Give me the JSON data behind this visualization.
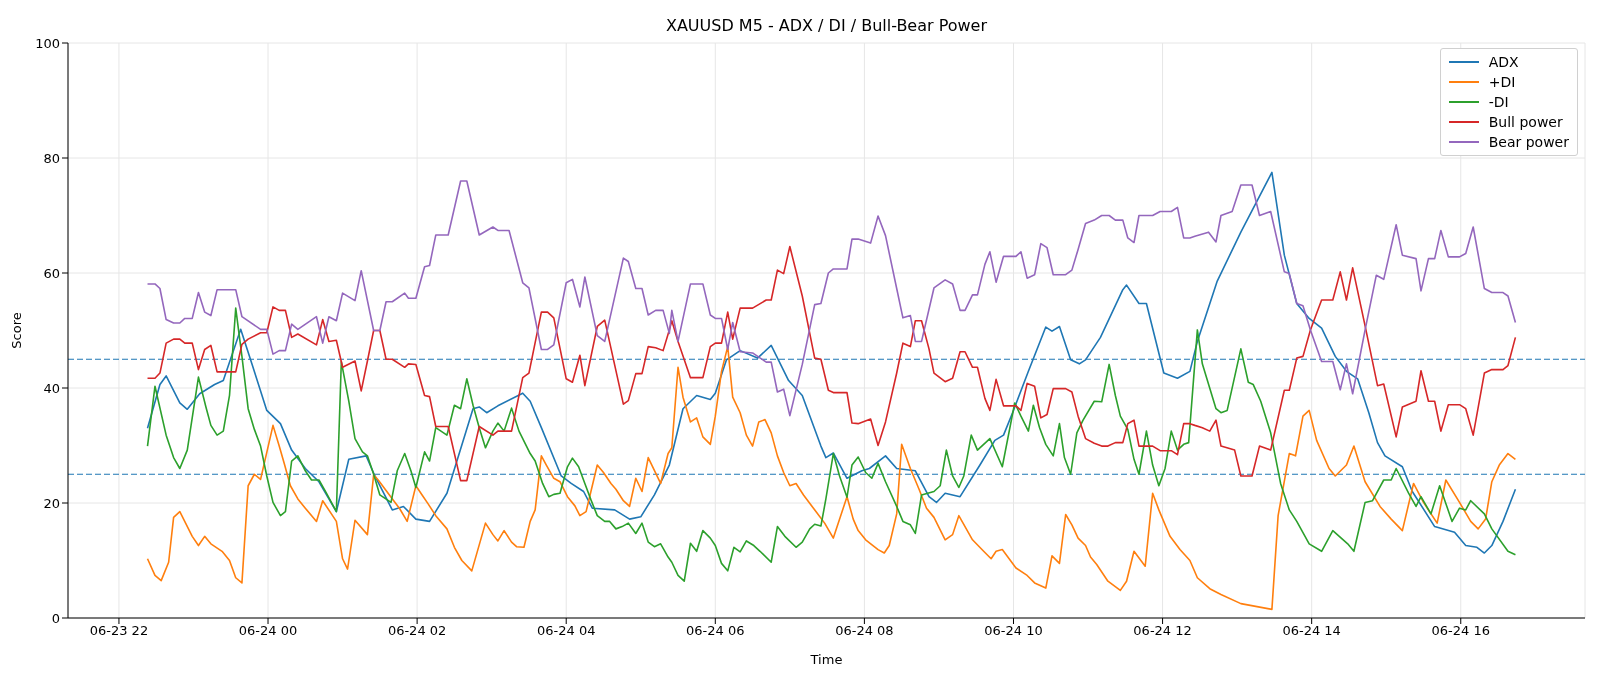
{
  "chart_data": {
    "type": "line",
    "title": "XAUUSD M5 - ADX / DI / Bull-Bear Power",
    "xlabel": "Time",
    "ylabel": "Score",
    "xlim": [
      "--06-23T21:19",
      "--06-24T17:40"
    ],
    "xticks": [
      {
        "value": "--06-23T22:00",
        "label": "06-23 22"
      },
      {
        "value": "--06-24T00:00",
        "label": "06-24 00"
      },
      {
        "value": "--06-24T02:00",
        "label": "06-24 02"
      },
      {
        "value": "--06-24T04:00",
        "label": "06-24 04"
      },
      {
        "value": "--06-24T06:00",
        "label": "06-24 06"
      },
      {
        "value": "--06-24T08:00",
        "label": "06-24 08"
      },
      {
        "value": "--06-24T10:00",
        "label": "06-24 10"
      },
      {
        "value": "--06-24T12:00",
        "label": "06-24 12"
      },
      {
        "value": "--06-24T14:00",
        "label": "06-24 14"
      },
      {
        "value": "--06-24T16:00",
        "label": "06-24 16"
      }
    ],
    "ylim": [
      0,
      100
    ],
    "yticks": [
      0,
      20,
      40,
      60,
      80,
      100
    ],
    "grid": true,
    "legend": "top right",
    "line_style": "solid",
    "ref_lines": [
      {
        "axis": "y",
        "value": 45,
        "color": "#1f77b4",
        "line_style": "dashed"
      },
      {
        "axis": "y",
        "value": 25,
        "color": "#1f77b4",
        "line_style": "dashed"
      }
    ],
    "series": [
      {
        "name": "ADX",
        "color": "#1f77b4",
        "x": [
          "--06-23T22:23",
          "--06-23T22:33",
          "--06-23T22:38",
          "--06-23T22:49",
          "--06-23T22:55",
          "--06-23T23:05",
          "--06-23T23:17",
          "--06-23T23:24",
          "--06-23T23:38",
          "--06-23T23:47",
          "--06-23T23:59",
          "--06-24T00:10",
          "--06-24T00:19",
          "--06-24T00:30",
          "--06-24T00:41",
          "--06-24T00:55",
          "--06-24T01:05",
          "--06-24T01:19",
          "--06-24T01:26",
          "--06-24T01:40",
          "--06-24T01:49",
          "--06-24T01:59",
          "--06-24T02:10",
          "--06-24T02:24",
          "--06-24T02:45",
          "--06-24T02:50",
          "--06-24T02:56",
          "--06-24T03:05",
          "--06-24T03:25",
          "--06-24T03:31",
          "--06-24T03:40",
          "--06-24T03:56",
          "--06-24T04:04",
          "--06-24T04:14",
          "--06-24T04:21",
          "--06-24T04:39",
          "--06-24T04:51",
          "--06-24T05:00",
          "--06-24T05:11",
          "--06-24T05:23",
          "--06-24T05:34",
          "--06-24T05:45",
          "--06-24T05:56",
          "--06-24T06:00",
          "--06-24T06:09",
          "--06-24T06:20",
          "--06-24T06:34",
          "--06-24T06:45",
          "--06-24T06:59",
          "--06-24T07:10",
          "--06-24T07:25",
          "--06-24T07:29",
          "--06-24T07:35",
          "--06-24T07:46",
          "--06-24T07:58",
          "--06-24T08:04",
          "--06-24T08:17",
          "--06-24T08:26",
          "--06-24T08:41",
          "--06-24T08:52",
          "--06-24T08:58",
          "--06-24T09:05",
          "--06-24T09:17",
          "--06-24T09:33",
          "--06-24T09:45",
          "--06-24T09:52",
          "--06-24T10:00",
          "--06-24T10:12",
          "--06-24T10:26",
          "--06-24T10:31",
          "--06-24T10:37",
          "--06-24T10:46",
          "--06-24T10:53",
          "--06-24T10:58",
          "--06-24T11:10",
          "--06-24T11:28",
          "--06-24T11:31",
          "--06-24T11:41",
          "--06-24T11:47",
          "--06-24T12:01",
          "--06-24T12:12",
          "--06-24T12:22",
          "--06-24T12:28",
          "--06-24T12:44",
          "--06-24T13:03",
          "--06-24T13:28",
          "--06-24T13:38",
          "--06-24T13:48",
          "--06-24T13:58",
          "--06-24T14:08",
          "--06-24T14:19",
          "--06-24T14:28",
          "--06-24T14:37",
          "--06-24T14:46",
          "--06-24T14:53",
          "--06-24T14:59",
          "--06-24T15:13",
          "--06-24T15:21",
          "--06-24T15:39",
          "--06-24T15:55",
          "--06-24T16:04",
          "--06-24T16:13",
          "--06-24T16:19",
          "--06-24T16:25",
          "--06-24T16:34",
          "--06-24T16:44"
        ],
        "values": [
          33,
          40.6,
          42.1,
          37.4,
          36.3,
          39,
          40.6,
          41.3,
          50.2,
          44.2,
          36.1,
          33.8,
          29.2,
          26,
          23.7,
          18.5,
          27.6,
          28.2,
          24.7,
          18.8,
          19.4,
          17.2,
          16.8,
          21.7,
          36.4,
          36.7,
          35.7,
          36.9,
          39.1,
          37.7,
          33.1,
          24.7,
          23.4,
          22,
          19.1,
          18.8,
          17.2,
          17.6,
          21.4,
          26.6,
          36.4,
          38.7,
          38,
          39.1,
          44.9,
          46.5,
          45.2,
          47.4,
          41.3,
          38.7,
          29.9,
          27.9,
          28.7,
          24.3,
          25.6,
          26,
          28.2,
          26,
          25.6,
          21.1,
          20.1,
          21.7,
          21.1,
          26.6,
          30.9,
          31.8,
          36.1,
          42.9,
          50.6,
          49.9,
          50.7,
          44.9,
          44.2,
          44.9,
          48.8,
          57.1,
          57.9,
          54.7,
          54.7,
          42.6,
          41.7,
          42.9,
          48.1,
          58.6,
          67.1,
          77.5,
          63.1,
          54.7,
          52.1,
          50.4,
          45.5,
          42.9,
          41.6,
          35.7,
          30.5,
          28.2,
          26.3,
          22,
          15.9,
          14.9,
          12.6,
          12.3,
          11.3,
          12.6,
          16.8,
          22.4
        ]
      },
      {
        "name": "+DI",
        "color": "#ff7f0e",
        "x": [
          "--06-23T22:23",
          "--06-23T22:29",
          "--06-23T22:34",
          "--06-23T22:40",
          "--06-23T22:44",
          "--06-23T22:49",
          "--06-23T22:59",
          "--06-23T23:04",
          "--06-23T23:09",
          "--06-23T23:14",
          "--06-23T23:23",
          "--06-23T23:29",
          "--06-23T23:34",
          "--06-23T23:39",
          "--06-23T23:44",
          "--06-23T23:49",
          "--06-23T23:54",
          "--06-24T00:04",
          "--06-24T00:09",
          "--06-24T00:13",
          "--06-24T00:18",
          "--06-24T00:24",
          "--06-24T00:30",
          "--06-24T00:39",
          "--06-24T00:44",
          "--06-24T00:55",
          "--06-24T01:00",
          "--06-24T01:04",
          "--06-24T01:10",
          "--06-24T01:20",
          "--06-24T01:25",
          "--06-24T01:29",
          "--06-24T01:38",
          "--06-24T01:46",
          "--06-24T01:52",
          "--06-24T01:59",
          "--06-24T02:04",
          "--06-24T02:09",
          "--06-24T02:15",
          "--06-24T02:24",
          "--06-24T02:30",
          "--06-24T02:36",
          "--06-24T02:44",
          "--06-24T02:55",
          "--06-24T03:01",
          "--06-24T03:05",
          "--06-24T03:10",
          "--06-24T03:16",
          "--06-24T03:20",
          "--06-24T03:26",
          "--06-24T03:31",
          "--06-24T03:35",
          "--06-24T03:40",
          "--06-24T03:44",
          "--06-24T03:50",
          "--06-24T03:55",
          "--06-24T04:01",
          "--06-24T04:07",
          "--06-24T04:11",
          "--06-24T04:16",
          "--06-24T04:25",
          "--06-24T04:30",
          "--06-24T04:36",
          "--06-24T04:40",
          "--06-24T04:46",
          "--06-24T04:51",
          "--06-24T04:56",
          "--06-24T05:01",
          "--06-24T05:06",
          "--06-24T05:16",
          "--06-24T05:22",
          "--06-24T05:25",
          "--06-24T05:30",
          "--06-24T05:34",
          "--06-24T05:40",
          "--06-24T05:45",
          "--06-24T05:50",
          "--06-24T05:56",
          "--06-24T06:00",
          "--06-24T06:05",
          "--06-24T06:10",
          "--06-24T06:14",
          "--06-24T06:20",
          "--06-24T06:25",
          "--06-24T06:30",
          "--06-24T06:35",
          "--06-24T06:40",
          "--06-24T06:45",
          "--06-24T06:50",
          "--06-24T06:55",
          "--06-24T07:00",
          "--06-24T07:05",
          "--06-24T07:11",
          "--06-24T07:19",
          "--06-24T07:28",
          "--06-24T07:35",
          "--06-24T07:46",
          "--06-24T07:51",
          "--06-24T07:55",
          "--06-24T08:01",
          "--06-24T08:11",
          "--06-24T08:16",
          "--06-24T08:20",
          "--06-24T08:26",
          "--06-24T08:30",
          "--06-24T08:37",
          "--06-24T08:44",
          "--06-24T08:50",
          "--06-24T08:56",
          "--06-24T09:05",
          "--06-24T09:11",
          "--06-24T09:16",
          "--06-24T09:27",
          "--06-24T09:36",
          "--06-24T09:42",
          "--06-24T09:46",
          "--06-24T09:51",
          "--06-24T10:02",
          "--06-24T10:11",
          "--06-24T10:17",
          "--06-24T10:26",
          "--06-24T10:31",
          "--06-24T10:37",
          "--06-24T10:42",
          "--06-24T10:47",
          "--06-24T10:52",
          "--06-24T10:58",
          "--06-24T11:02",
          "--06-24T11:07",
          "--06-24T11:16",
          "--06-24T11:26",
          "--06-24T11:31",
          "--06-24T11:37",
          "--06-24T11:46",
          "--06-24T11:52",
          "--06-24T11:57",
          "--06-24T12:06",
          "--06-24T12:14",
          "--06-24T12:22",
          "--06-24T12:28",
          "--06-24T12:38",
          "--06-24T12:47",
          "--06-24T13:03",
          "--06-24T13:28",
          "--06-24T13:33",
          "--06-24T13:42",
          "--06-24T13:47",
          "--06-24T13:53",
          "--06-24T13:58",
          "--06-24T14:04",
          "--06-24T14:14",
          "--06-24T14:19",
          "--06-24T14:28",
          "--06-24T14:34",
          "--06-24T14:43",
          "--06-24T14:55",
          "--06-24T15:04",
          "--06-24T15:13",
          "--06-24T15:22",
          "--06-24T15:30",
          "--06-24T15:41",
          "--06-24T15:48",
          "--06-24T15:59",
          "--06-24T16:08",
          "--06-24T16:14",
          "--06-24T16:20",
          "--06-24T16:25",
          "--06-24T16:31",
          "--06-24T16:38",
          "--06-24T16:44"
        ],
        "values": [
          10.3,
          7.4,
          6.5,
          9.7,
          17.5,
          18.5,
          14.2,
          12.6,
          14.2,
          12.9,
          11.6,
          10,
          7,
          6.1,
          23,
          25,
          24.1,
          33.5,
          29.9,
          26.9,
          23,
          20.7,
          19.1,
          16.8,
          20.4,
          16.8,
          10.3,
          8.5,
          17,
          14.5,
          24.9,
          23.9,
          21.3,
          19,
          16.8,
          23,
          21.4,
          19.8,
          17.8,
          15.5,
          12.3,
          10,
          8.2,
          16.5,
          14.5,
          13.4,
          15.2,
          13.2,
          12.4,
          12.3,
          16.8,
          18.8,
          28.2,
          26.6,
          24.3,
          23.7,
          21.1,
          19.5,
          17.8,
          18.5,
          26.6,
          25.3,
          23.4,
          22.4,
          20.4,
          19.4,
          24.3,
          22,
          27.9,
          23.4,
          28.6,
          29.6,
          43.6,
          38.4,
          34.1,
          34.8,
          31.5,
          30.2,
          35.1,
          42.9,
          47.2,
          38.4,
          35.7,
          31.8,
          29.9,
          34.1,
          34.5,
          32.2,
          28.2,
          25.3,
          23,
          23.4,
          21.4,
          19.1,
          16.5,
          13.9,
          21.1,
          17.2,
          15.2,
          13.6,
          11.9,
          11.3,
          12.6,
          18.1,
          30.2,
          26,
          22.4,
          19.1,
          17.5,
          13.6,
          14.5,
          17.8,
          13.6,
          11.6,
          10.3,
          11.6,
          11.9,
          8.7,
          7.4,
          6.1,
          5.2,
          10.8,
          9.5,
          18,
          16.2,
          13.9,
          12.6,
          10.6,
          9.3,
          6.4,
          4.8,
          6.4,
          11.6,
          9,
          21.7,
          18.8,
          14.2,
          11.9,
          10,
          7,
          5.1,
          4.1,
          2.5,
          1.5,
          17.8,
          28.6,
          28.2,
          35.1,
          36.1,
          30.9,
          26,
          24.7,
          26.6,
          29.9,
          23.7,
          19.4,
          17.2,
          15.2,
          23.4,
          20.1,
          16.5,
          24,
          20.1,
          16.8,
          15.5,
          17.2,
          23.7,
          26.6,
          28.6,
          27.6
        ]
      },
      {
        "name": "-DI",
        "color": "#2ca02c",
        "x": [
          "--06-23T22:23",
          "--06-23T22:29",
          "--06-23T22:38",
          "--06-23T22:44",
          "--06-23T22:49",
          "--06-23T22:55",
          "--06-23T23:04",
          "--06-23T23:10",
          "--06-23T23:14",
          "--06-23T23:19",
          "--06-23T23:24",
          "--06-23T23:29",
          "--06-23T23:34",
          "--06-23T23:39",
          "--06-23T23:44",
          "--06-23T23:49",
          "--06-23T23:54",
          "--06-23T23:59",
          "--06-24T00:04",
          "--06-24T00:10",
          "--06-24T00:14",
          "--06-24T00:19",
          "--06-24T00:24",
          "--06-24T00:30",
          "--06-24T00:35",
          "--06-24T00:41",
          "--06-24T00:47",
          "--06-24T00:55",
          "--06-24T00:59",
          "--06-24T01:05",
          "--06-24T01:10",
          "--06-24T01:16",
          "--06-24T01:20",
          "--06-24T01:25",
          "--06-24T01:30",
          "--06-24T01:39",
          "--06-24T01:44",
          "--06-24T01:50",
          "--06-24T01:55",
          "--06-24T01:59",
          "--06-24T02:06",
          "--06-24T02:10",
          "--06-24T02:15",
          "--06-24T02:24",
          "--06-24T02:30",
          "--06-24T02:35",
          "--06-24T02:40",
          "--06-24T02:45",
          "--06-24T02:50",
          "--06-24T02:55",
          "--06-24T03:01",
          "--06-24T03:05",
          "--06-24T03:10",
          "--06-24T03:16",
          "--06-24T03:22",
          "--06-24T03:31",
          "--06-24T03:35",
          "--06-24T03:41",
          "--06-24T03:46",
          "--06-24T03:50",
          "--06-24T03:55",
          "--06-24T04:01",
          "--06-24T04:05",
          "--06-24T04:10",
          "--06-24T04:15",
          "--06-24T04:20",
          "--06-24T04:25",
          "--06-24T04:31",
          "--06-24T04:35",
          "--06-24T04:40",
          "--06-24T04:45",
          "--06-24T04:50",
          "--06-24T04:56",
          "--06-24T05:01",
          "--06-24T05:06",
          "--06-24T05:11",
          "--06-24T05:16",
          "--06-24T05:22",
          "--06-24T05:25",
          "--06-24T05:30",
          "--06-24T05:35",
          "--06-24T05:40",
          "--06-24T05:45",
          "--06-24T05:50",
          "--06-24T05:56",
          "--06-24T06:00",
          "--06-24T06:05",
          "--06-24T06:10",
          "--06-24T06:15",
          "--06-24T06:20",
          "--06-24T06:25",
          "--06-24T06:31",
          "--06-24T06:36",
          "--06-24T06:45",
          "--06-24T06:50",
          "--06-24T06:56",
          "--06-24T07:05",
          "--06-24T07:10",
          "--06-24T07:16",
          "--06-24T07:20",
          "--06-24T07:25",
          "--06-24T07:29",
          "--06-24T07:35",
          "--06-24T07:40",
          "--06-24T07:46",
          "--06-24T07:50",
          "--06-24T07:55",
          "--06-24T08:01",
          "--06-24T08:06",
          "--06-24T08:11",
          "--06-24T08:17",
          "--06-24T08:26",
          "--06-24T08:31",
          "--06-24T08:37",
          "--06-24T08:41",
          "--06-24T08:46",
          "--06-24T08:56",
          "--06-24T09:01",
          "--06-24T09:06",
          "--06-24T09:11",
          "--06-24T09:16",
          "--06-24T09:20",
          "--06-24T09:26",
          "--06-24T09:31",
          "--06-24T09:41",
          "--06-24T09:51",
          "--06-24T10:01",
          "--06-24T10:06",
          "--06-24T10:12",
          "--06-24T10:16",
          "--06-24T10:21",
          "--06-24T10:26",
          "--06-24T10:32",
          "--06-24T10:37",
          "--06-24T10:41",
          "--06-24T10:46",
          "--06-24T10:51",
          "--06-24T10:56",
          "--06-24T11:05",
          "--06-24T11:11",
          "--06-24T11:17",
          "--06-24T11:22",
          "--06-24T11:26",
          "--06-24T11:32",
          "--06-24T11:37",
          "--06-24T11:41",
          "--06-24T11:47",
          "--06-24T11:52",
          "--06-24T11:57",
          "--06-24T12:02",
          "--06-24T12:07",
          "--06-24T12:12",
          "--06-24T12:17",
          "--06-24T12:21",
          "--06-24T12:28",
          "--06-24T12:32",
          "--06-24T12:43",
          "--06-24T12:47",
          "--06-24T12:52",
          "--06-24T13:03",
          "--06-24T13:09",
          "--06-24T13:13",
          "--06-24T13:19",
          "--06-24T13:27",
          "--06-24T13:35",
          "--06-24T13:42",
          "--06-24T13:48",
          "--06-24T13:58",
          "--06-24T14:08",
          "--06-24T14:17",
          "--06-24T14:29",
          "--06-24T14:34",
          "--06-24T14:43",
          "--06-24T14:49",
          "--06-24T14:58",
          "--06-24T15:04",
          "--06-24T15:08",
          "--06-24T15:18",
          "--06-24T15:24",
          "--06-24T15:28",
          "--06-24T15:36",
          "--06-24T15:43",
          "--06-24T15:53",
          "--06-24T15:59",
          "--06-24T16:04",
          "--06-24T16:08",
          "--06-24T16:19",
          "--06-24T16:25",
          "--06-24T16:38",
          "--06-24T16:44"
        ],
        "values": [
          29.9,
          40.3,
          31.8,
          27.9,
          26,
          29.2,
          41.9,
          36.7,
          33.5,
          31.8,
          32.5,
          38.7,
          53.9,
          45.5,
          36.4,
          32.8,
          29.9,
          24.7,
          20.1,
          17.8,
          18.5,
          27.3,
          28.2,
          25.6,
          24,
          24,
          21.7,
          18.5,
          44.6,
          37.7,
          31.2,
          28.9,
          28.2,
          25,
          21.4,
          20.1,
          25.6,
          28.6,
          25.6,
          22.7,
          28.9,
          27.3,
          33.1,
          31.8,
          37,
          36.4,
          41.6,
          37,
          33.1,
          29.6,
          32.5,
          33.9,
          32.5,
          36.5,
          32.5,
          28.6,
          27.3,
          23.4,
          21.1,
          21.5,
          21.7,
          26.3,
          27.8,
          26.3,
          23.4,
          20.5,
          17.8,
          16.8,
          16.8,
          15.5,
          15.9,
          16.5,
          14.7,
          16.5,
          13.2,
          12.4,
          12.9,
          10.6,
          9.7,
          7.4,
          6.4,
          13,
          11.6,
          15.2,
          13.9,
          12.6,
          9.5,
          8.2,
          12.3,
          11.5,
          13.4,
          12.6,
          11.6,
          9.7,
          15.9,
          14.2,
          12.3,
          13.2,
          15.5,
          16.3,
          16,
          20.7,
          28.6,
          24.7,
          21,
          26.6,
          28,
          25.3,
          24.3,
          26.9,
          23.7,
          19.4,
          16.8,
          16.2,
          14.7,
          21.4,
          22,
          23,
          29.2,
          24.7,
          22.7,
          24.7,
          31.8,
          29.2,
          31.2,
          26.3,
          37.4,
          35.1,
          32.5,
          37,
          33.1,
          30.2,
          28.2,
          33.8,
          27.9,
          25,
          32.2,
          34.4,
          37.7,
          37.6,
          44.1,
          38.7,
          35.1,
          32.8,
          27.6,
          25,
          32.5,
          26.6,
          23,
          26,
          32.5,
          29.2,
          30.2,
          30.5,
          50.1,
          44.2,
          36.4,
          35.7,
          36.1,
          46.8,
          41,
          40.6,
          37.7,
          32.2,
          23.4,
          18.8,
          16.8,
          12.9,
          11.6,
          15.2,
          12.9,
          11.6,
          20.1,
          20.4,
          24,
          24,
          26,
          21.7,
          19.4,
          21.1,
          18.1,
          23,
          16.8,
          19.1,
          18.8,
          20.4,
          18.1,
          15.5,
          11.6,
          11
        ]
      },
      {
        "name": "Bull power",
        "color": "#d62728",
        "x": [
          "--06-23T22:23",
          "--06-23T22:29",
          "--06-23T22:33",
          "--06-23T22:38",
          "--06-23T22:44",
          "--06-23T22:49",
          "--06-23T22:53",
          "--06-23T22:59",
          "--06-23T23:04",
          "--06-23T23:09",
          "--06-23T23:14",
          "--06-23T23:19",
          "--06-23T23:34",
          "--06-23T23:39",
          "--06-23T23:44",
          "--06-23T23:54",
          "--06-23T23:59",
          "--06-24T00:04",
          "--06-24T00:09",
          "--06-24T00:14",
          "--06-24T00:19",
          "--06-24T00:24",
          "--06-24T00:39",
          "--06-24T00:44",
          "--06-24T00:49",
          "--06-24T00:55",
          "--06-24T01:00",
          "--06-24T01:10",
          "--06-24T01:15",
          "--06-24T01:20",
          "--06-24T01:25",
          "--06-24T01:30",
          "--06-24T01:35",
          "--06-24T01:40",
          "--06-24T01:50",
          "--06-24T01:53",
          "--06-24T01:59",
          "--06-24T02:06",
          "--06-24T02:10",
          "--06-24T02:15",
          "--06-24T02:25",
          "--06-24T02:35",
          "--06-24T02:40",
          "--06-24T02:50",
          "--06-24T03:01",
          "--06-24T03:05",
          "--06-24T03:16",
          "--06-24T03:25",
          "--06-24T03:30",
          "--06-24T03:40",
          "--06-24T03:45",
          "--06-24T03:50",
          "--06-24T04:00",
          "--06-24T04:05",
          "--06-24T04:11",
          "--06-24T04:15",
          "--06-24T04:25",
          "--06-24T04:31",
          "--06-24T04:46",
          "--06-24T04:50",
          "--06-24T04:56",
          "--06-24T05:01",
          "--06-24T05:06",
          "--06-24T05:12",
          "--06-24T05:18",
          "--06-24T05:23",
          "--06-24T05:25",
          "--06-24T05:30",
          "--06-24T05:40",
          "--06-24T05:50",
          "--06-24T05:56",
          "--06-24T06:00",
          "--06-24T06:05",
          "--06-24T06:10",
          "--06-24T06:14",
          "--06-24T06:20",
          "--06-24T06:30",
          "--06-24T06:41",
          "--06-24T06:45",
          "--06-24T06:50",
          "--06-24T06:55",
          "--06-24T07:00",
          "--06-24T07:10",
          "--06-24T07:20",
          "--06-24T07:25",
          "--06-24T07:31",
          "--06-24T07:35",
          "--06-24T07:46",
          "--06-24T07:50",
          "--06-24T07:55",
          "--06-24T08:05",
          "--06-24T08:11",
          "--06-24T08:17",
          "--06-24T08:26",
          "--06-24T08:31",
          "--06-24T08:37",
          "--06-24T08:41",
          "--06-24T08:46",
          "--06-24T08:52",
          "--06-24T08:56",
          "--06-24T09:05",
          "--06-24T09:11",
          "--06-24T09:17",
          "--06-24T09:21",
          "--06-24T09:27",
          "--06-24T09:31",
          "--06-24T09:37",
          "--06-24T09:41",
          "--06-24T09:46",
          "--06-24T09:52",
          "--06-24T10:02",
          "--06-24T10:06",
          "--06-24T10:11",
          "--06-24T10:17",
          "--06-24T10:22",
          "--06-24T10:27",
          "--06-24T10:32",
          "--06-24T10:42",
          "--06-24T10:47",
          "--06-24T10:52",
          "--06-24T10:58",
          "--06-24T11:05",
          "--06-24T11:11",
          "--06-24T11:16",
          "--06-24T11:22",
          "--06-24T11:28",
          "--06-24T11:32",
          "--06-24T11:37",
          "--06-24T11:41",
          "--06-24T11:52",
          "--06-24T11:58",
          "--06-24T12:07",
          "--06-24T12:12",
          "--06-24T12:17",
          "--06-24T12:22",
          "--06-24T12:26",
          "--06-24T12:32",
          "--06-24T12:38",
          "--06-24T12:43",
          "--06-24T12:47",
          "--06-24T12:58",
          "--06-24T13:03",
          "--06-24T13:12",
          "--06-24T13:18",
          "--06-24T13:27",
          "--06-24T13:38",
          "--06-24T13:42",
          "--06-24T13:48",
          "--06-24T13:53",
          "--06-24T13:59",
          "--06-24T14:08",
          "--06-24T14:17",
          "--06-24T14:23",
          "--06-24T14:28",
          "--06-24T14:33",
          "--06-24T14:43",
          "--06-24T14:53",
          "--06-24T14:58",
          "--06-24T15:08",
          "--06-24T15:13",
          "--06-24T15:24",
          "--06-24T15:28",
          "--06-24T15:34",
          "--06-24T15:39",
          "--06-24T15:44",
          "--06-24T15:50",
          "--06-24T15:59",
          "--06-24T16:04",
          "--06-24T16:10",
          "--06-24T16:19",
          "--06-24T16:25",
          "--06-24T16:34",
          "--06-24T16:38",
          "--06-24T16:44"
        ],
        "values": [
          41.7,
          41.7,
          42.6,
          47.8,
          48.5,
          48.5,
          47.8,
          47.8,
          43.2,
          46.7,
          47.4,
          42.8,
          42.8,
          47.6,
          48.5,
          49.6,
          49.6,
          54.1,
          53.5,
          53.5,
          48.8,
          49.4,
          47.5,
          51.9,
          48.1,
          48.3,
          43.6,
          44.7,
          39.5,
          44.7,
          50,
          50,
          45,
          45,
          43.6,
          44.2,
          44.1,
          38.7,
          38.5,
          33.3,
          33.3,
          23.9,
          23.9,
          33.3,
          31.8,
          32.5,
          32.5,
          41.8,
          42.6,
          53.2,
          53.2,
          52.2,
          41.6,
          41,
          45.7,
          40.4,
          50.7,
          51.8,
          37.2,
          37.8,
          42.5,
          42.5,
          47.2,
          47,
          46.5,
          50.1,
          51.7,
          48.1,
          41.8,
          41.8,
          47.2,
          47.8,
          47.8,
          53.2,
          48.5,
          53.9,
          53.9,
          55.3,
          55.3,
          60.5,
          59.9,
          64.6,
          56,
          45.2,
          45,
          39.6,
          39.2,
          39.2,
          33.9,
          33.8,
          34.6,
          30,
          34.1,
          42.6,
          47.8,
          47.2,
          51.7,
          51.7,
          46.8,
          42.6,
          41.1,
          41.7,
          46.3,
          46.3,
          43.6,
          43.6,
          38.2,
          36.1,
          41.5,
          36.9,
          36.9,
          36.1,
          40.8,
          40.3,
          34.8,
          35.4,
          39.9,
          39.9,
          39.3,
          35.1,
          31.2,
          30.4,
          29.9,
          29.9,
          30.5,
          30.5,
          33.8,
          34.4,
          29.9,
          29.9,
          29.1,
          29.1,
          28.4,
          33.8,
          33.8,
          33.5,
          33.1,
          32.5,
          34.4,
          29.9,
          29.2,
          24.7,
          24.7,
          29.9,
          29.2,
          39.6,
          39.6,
          45.2,
          45.5,
          50.1,
          55.3,
          55.3,
          60.2,
          55.3,
          60.9,
          50.8,
          40.4,
          40.7,
          31.5,
          36.7,
          37.7,
          43,
          37.7,
          37.7,
          32.5,
          37.1,
          37.1,
          36.4,
          31.8,
          42.6,
          43.2,
          43.2,
          43.9,
          48.8
        ]
      },
      {
        "name": "Bear power",
        "color": "#9467bd",
        "x": [
          "--06-23T22:23",
          "--06-23T22:29",
          "--06-23T22:33",
          "--06-23T22:38",
          "--06-23T22:44",
          "--06-23T22:49",
          "--06-23T22:53",
          "--06-23T22:59",
          "--06-23T23:04",
          "--06-23T23:09",
          "--06-23T23:14",
          "--06-23T23:19",
          "--06-23T23:34",
          "--06-23T23:39",
          "--06-23T23:54",
          "--06-23T23:59",
          "--06-24T00:04",
          "--06-24T00:09",
          "--06-24T00:14",
          "--06-24T00:19",
          "--06-24T00:24",
          "--06-24T00:39",
          "--06-24T00:44",
          "--06-24T00:49",
          "--06-24T00:55",
          "--06-24T01:00",
          "--06-24T01:10",
          "--06-24T01:15",
          "--06-24T01:25",
          "--06-24T01:30",
          "--06-24T01:35",
          "--06-24T01:40",
          "--06-24T01:50",
          "--06-24T01:53",
          "--06-24T01:59",
          "--06-24T02:06",
          "--06-24T02:10",
          "--06-24T02:15",
          "--06-24T02:25",
          "--06-24T02:35",
          "--06-24T02:40",
          "--06-24T02:50",
          "--06-24T03:01",
          "--06-24T03:05",
          "--06-24T03:14",
          "--06-24T03:25",
          "--06-24T03:30",
          "--06-24T03:40",
          "--06-24T03:45",
          "--06-24T03:50",
          "--06-24T04:00",
          "--06-24T04:05",
          "--06-24T04:11",
          "--06-24T04:15",
          "--06-24T04:25",
          "--06-24T04:31",
          "--06-24T04:46",
          "--06-24T04:50",
          "--06-24T04:56",
          "--06-24T05:01",
          "--06-24T05:06",
          "--06-24T05:12",
          "--06-24T05:18",
          "--06-24T05:23",
          "--06-24T05:25",
          "--06-24T05:30",
          "--06-24T05:40",
          "--06-24T05:50",
          "--06-24T05:56",
          "--06-24T06:00",
          "--06-24T06:05",
          "--06-24T06:10",
          "--06-24T06:14",
          "--06-24T06:20",
          "--06-24T06:30",
          "--06-24T06:41",
          "--06-24T06:45",
          "--06-24T06:50",
          "--06-24T06:55",
          "--06-24T07:00",
          "--06-24T07:10",
          "--06-24T07:20",
          "--06-24T07:25",
          "--06-24T07:31",
          "--06-24T07:35",
          "--06-24T07:46",
          "--06-24T07:50",
          "--06-24T07:55",
          "--06-24T08:05",
          "--06-24T08:11",
          "--06-24T08:17",
          "--06-24T08:26",
          "--06-24T08:31",
          "--06-24T08:37",
          "--06-24T08:41",
          "--06-24T08:46",
          "--06-24T08:52",
          "--06-24T08:56",
          "--06-24T09:05",
          "--06-24T09:11",
          "--06-24T09:17",
          "--06-24T09:21",
          "--06-24T09:27",
          "--06-24T09:31",
          "--06-24T09:37",
          "--06-24T09:41",
          "--06-24T09:46",
          "--06-24T09:52",
          "--06-24T10:02",
          "--06-24T10:06",
          "--06-24T10:11",
          "--06-24T10:17",
          "--06-24T10:22",
          "--06-24T10:27",
          "--06-24T10:32",
          "--06-24T10:42",
          "--06-24T10:47",
          "--06-24T10:52",
          "--06-24T10:58",
          "--06-24T11:05",
          "--06-24T11:11",
          "--06-24T11:17",
          "--06-24T11:22",
          "--06-24T11:28",
          "--06-24T11:32",
          "--06-24T11:37",
          "--06-24T11:41",
          "--06-24T11:52",
          "--06-24T11:58",
          "--06-24T12:07",
          "--06-24T12:12",
          "--06-24T12:17",
          "--06-24T12:22",
          "--06-24T12:26",
          "--06-24T12:37",
          "--06-24T12:43",
          "--06-24T12:47",
          "--06-24T12:56",
          "--06-24T13:03",
          "--06-24T13:12",
          "--06-24T13:18",
          "--06-24T13:27",
          "--06-24T13:38",
          "--06-24T13:42",
          "--06-24T13:48",
          "--06-24T13:53",
          "--06-24T13:59",
          "--06-24T14:08",
          "--06-24T14:17",
          "--06-24T14:23",
          "--06-24T14:28",
          "--06-24T14:33",
          "--06-24T14:43",
          "--06-24T14:52",
          "--06-24T14:58",
          "--06-24T15:08",
          "--06-24T15:13",
          "--06-24T15:24",
          "--06-24T15:28",
          "--06-24T15:34",
          "--06-24T15:39",
          "--06-24T15:44",
          "--06-24T15:50",
          "--06-24T15:59",
          "--06-24T16:04",
          "--06-24T16:10",
          "--06-24T16:19",
          "--06-24T16:25",
          "--06-24T16:34",
          "--06-24T16:38",
          "--06-24T16:44"
        ],
        "values": [
          58.1,
          58.1,
          57.3,
          51.9,
          51.3,
          51.3,
          52.1,
          52.1,
          56.6,
          53.2,
          52.6,
          57.1,
          57.1,
          52.4,
          50.2,
          50.2,
          45.9,
          46.5,
          46.5,
          51.1,
          50.2,
          52.4,
          47.8,
          52.4,
          51.7,
          56.5,
          55.2,
          60.4,
          50,
          50,
          55,
          55,
          56.5,
          55.6,
          55.6,
          61.1,
          61.3,
          66.6,
          66.6,
          76,
          76,
          66.6,
          68,
          67.4,
          67.4,
          58.3,
          57.4,
          46.7,
          46.7,
          47.5,
          58.3,
          58.9,
          54.1,
          59.3,
          49.1,
          48.1,
          62.6,
          62,
          57.3,
          57.3,
          52.7,
          53.5,
          53.5,
          49.5,
          53.5,
          48.1,
          58.1,
          58.1,
          52.7,
          52.1,
          52.1,
          46.7,
          51.4,
          46.3,
          46.1,
          44.5,
          44.5,
          39.3,
          39.8,
          35.2,
          44.1,
          54.5,
          54.7,
          60,
          60.7,
          60.7,
          65.9,
          65.9,
          65.2,
          69.9,
          66.5,
          57.3,
          52.2,
          52.6,
          48.1,
          48.1,
          53.7,
          57.4,
          58.8,
          58.1,
          53.5,
          53.5,
          56.2,
          56.2,
          61.5,
          63.7,
          58.4,
          62.9,
          62.9,
          63.7,
          59.1,
          59.7,
          65.1,
          64.4,
          59.7,
          59.7,
          60.5,
          64.1,
          68.6,
          69.2,
          70,
          70,
          69.2,
          69.2,
          66.1,
          65.3,
          70,
          70,
          70.7,
          70.7,
          71.4,
          66.1,
          66.1,
          66.4,
          67.1,
          65.4,
          70,
          70.7,
          75.3,
          75.3,
          70,
          70.7,
          60.2,
          59.9,
          54.7,
          54.3,
          50.1,
          44.6,
          44.6,
          39.7,
          44.2,
          39,
          50.1,
          59.6,
          58.9,
          68.4,
          63.1,
          62.5,
          56.9,
          62.5,
          62.5,
          67.4,
          62.8,
          62.8,
          63.4,
          68,
          57.3,
          56.6,
          56.6,
          56,
          51.4
        ]
      }
    ]
  }
}
